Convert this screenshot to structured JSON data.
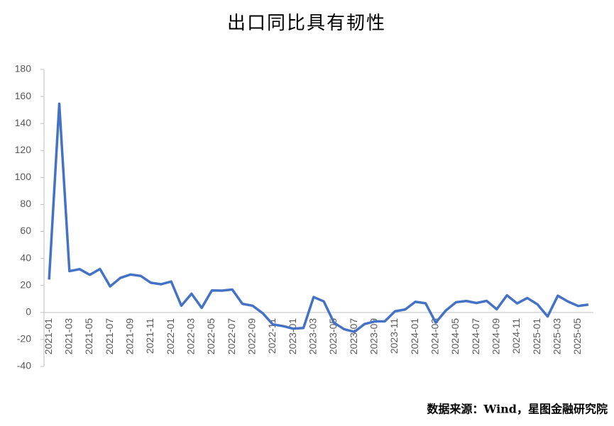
{
  "chart_data": {
    "type": "line",
    "title": "出口同比具有韧性",
    "source": "数据来源：Wind，星图金融研究院",
    "categories": [
      "2021-01",
      null,
      "2021-03",
      null,
      "2021-05",
      null,
      "2021-07",
      null,
      "2021-09",
      null,
      "2021-11",
      null,
      "2022-01",
      null,
      "2022-03",
      null,
      "2022-05",
      null,
      "2022-07",
      null,
      "2022-09",
      null,
      "2022-11",
      null,
      "2023-01",
      null,
      "2023-03",
      null,
      "2023-05",
      null,
      "2023-07",
      null,
      "2023-09",
      null,
      "2023-11",
      null,
      "2024-01",
      null,
      "2024-03",
      null,
      "2024-05",
      null,
      "2024-07",
      null,
      "2024-09",
      null,
      "2024-11",
      null,
      "2025-01",
      null,
      "2025-03",
      null,
      "2025-05",
      null
    ],
    "series": [
      {
        "name": "出口同比",
        "color": "#4472c4",
        "values": [
          24.4,
          154.6,
          30.6,
          32.1,
          27.9,
          32.2,
          19.3,
          25.6,
          28.1,
          27.1,
          22.0,
          20.9,
          22.9,
          5.0,
          13.9,
          3.4,
          16.3,
          16.2,
          17.0,
          6.4,
          5.0,
          -0.6,
          -8.9,
          -10.1,
          -12.0,
          -11.5,
          11.4,
          8.2,
          -7.6,
          -12.4,
          -14.4,
          -8.6,
          -6.6,
          -6.5,
          0.9,
          2.2,
          7.9,
          6.8,
          -7.5,
          1.5,
          7.6,
          8.5,
          7.0,
          8.6,
          2.4,
          12.7,
          6.7,
          10.7,
          6.0,
          -3.0,
          12.4,
          8.1,
          4.8,
          5.8
        ]
      }
    ],
    "ylim": [
      -40,
      180
    ],
    "yticks": [
      -40,
      -20,
      0,
      20,
      40,
      60,
      80,
      100,
      120,
      140,
      160,
      180
    ]
  }
}
